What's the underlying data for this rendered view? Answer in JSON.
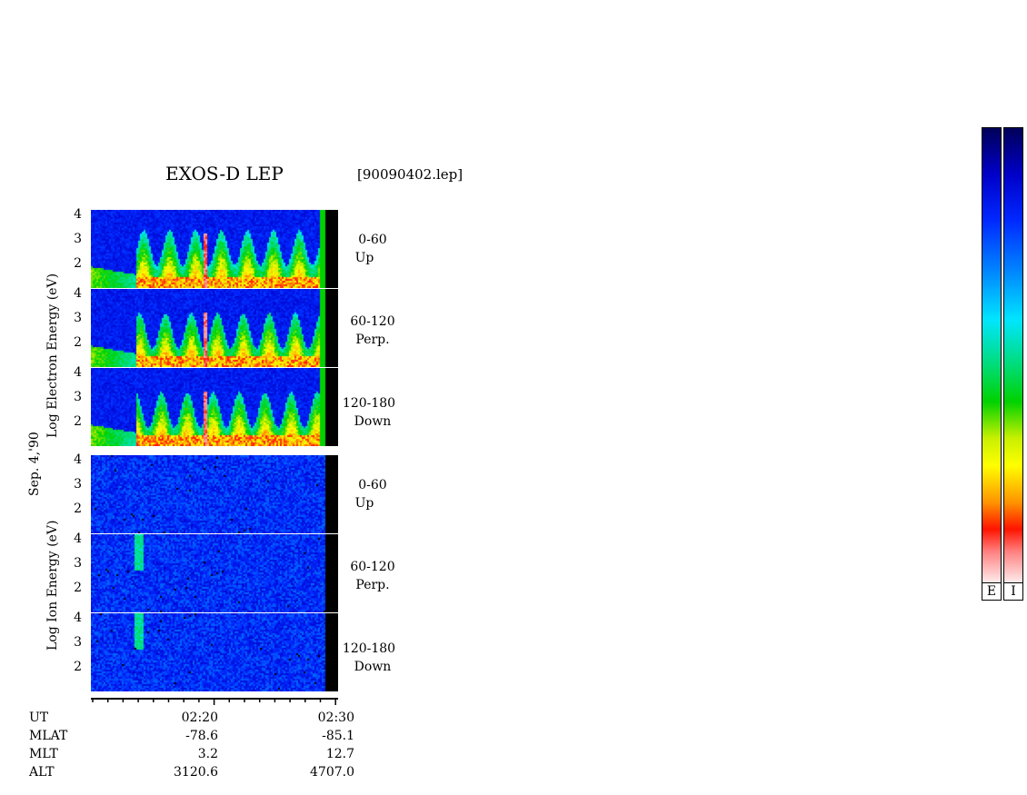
{
  "header": {
    "title": "EXOS-D LEP",
    "file": "[90090402.lep]"
  },
  "date_label": "Sep. 4,'90",
  "groups": [
    {
      "label": "Log   Electron   Energy  (eV)",
      "panels": [
        {
          "range": "0-60",
          "dir": "Up"
        },
        {
          "range": "60-120",
          "dir": "Perp."
        },
        {
          "range": "120-180",
          "dir": "Down"
        }
      ]
    },
    {
      "label": "Log   Ion   Energy  (eV)",
      "panels": [
        {
          "range": "0-60",
          "dir": "Up"
        },
        {
          "range": "60-120",
          "dir": "Perp."
        },
        {
          "range": "120-180",
          "dir": "Down"
        }
      ]
    }
  ],
  "colorbars": [
    {
      "label": "E"
    },
    {
      "label": "I"
    }
  ],
  "colors": {
    "scale": [
      "#ffffff",
      "#ff9999",
      "#ff0000",
      "#ff8800",
      "#ffff00",
      "#00dd00",
      "#00ffff",
      "#0088ff",
      "#0000ff",
      "#000066"
    ],
    "background": "#ffffff"
  },
  "chart_data": {
    "type": "heatmap",
    "title": "EXOS-D LEP",
    "ylabel_electron": "Log Electron Energy (eV)",
    "ylabel_ion": "Log Ion Energy (eV)",
    "y_ticks": [
      "4",
      "3",
      "2"
    ],
    "x_ticks": [
      "02:20",
      "02:30"
    ],
    "ylim": [
      1,
      4
    ],
    "panels": [
      "Electron 0-60 Up",
      "Electron 60-120 Perp.",
      "Electron 120-180 Down",
      "Ion 0-60 Up",
      "Ion 60-120 Perp.",
      "Ion 120-180 Down"
    ]
  },
  "ephemeris": {
    "rows": [
      {
        "name": "UT",
        "v1": "02:20",
        "v2": "02:30"
      },
      {
        "name": "MLAT",
        "v1": "-78.6",
        "v2": "-85.1"
      },
      {
        "name": "MLT",
        "v1": "3.2",
        "v2": "12.7"
      },
      {
        "name": "ALT",
        "v1": "3120.6",
        "v2": "4707.0"
      }
    ]
  }
}
